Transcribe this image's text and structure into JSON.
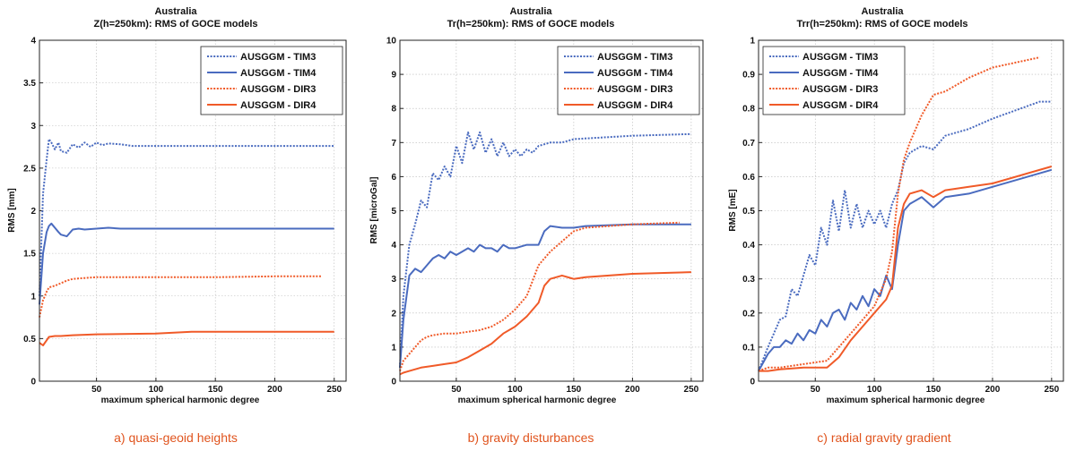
{
  "chart_data": [
    {
      "type": "line",
      "title": "Australia",
      "subtitle": "Z(h=250km): RMS of GOCE models",
      "xlabel": "maximum spherical harmonic degree",
      "ylabel": "RMS [mm]",
      "xlim": [
        2,
        260
      ],
      "ylim": [
        0,
        4
      ],
      "xticks": [
        50,
        100,
        150,
        200,
        250
      ],
      "yticks": [
        0,
        0.5,
        1,
        1.5,
        2,
        2.5,
        3,
        3.5,
        4
      ],
      "xtick_labels": [
        "50",
        "100",
        "150",
        "200",
        "250"
      ],
      "ytick_labels": [
        "0",
        "0.5",
        "1",
        "1.5",
        "2",
        "2.5",
        "3",
        "3.5",
        "4"
      ],
      "grid": true,
      "legend": "top-right",
      "caption": "a) quasi-geoid heights",
      "series": [
        {
          "name": "AUSGGM - TIM3",
          "color": "#4a6bbf",
          "dash": "dotted",
          "x": [
            2,
            5,
            8,
            10,
            12,
            15,
            18,
            20,
            25,
            30,
            35,
            40,
            45,
            50,
            55,
            60,
            70,
            80,
            100,
            150,
            200,
            250
          ],
          "y": [
            1.0,
            2.2,
            2.6,
            2.84,
            2.8,
            2.72,
            2.8,
            2.7,
            2.68,
            2.78,
            2.74,
            2.8,
            2.75,
            2.8,
            2.77,
            2.79,
            2.78,
            2.76,
            2.76,
            2.76,
            2.76,
            2.76
          ]
        },
        {
          "name": "AUSGGM - TIM4",
          "color": "#4a6bbf",
          "dash": "solid",
          "x": [
            2,
            5,
            8,
            10,
            12,
            15,
            18,
            20,
            25,
            30,
            35,
            40,
            50,
            60,
            70,
            80,
            100,
            150,
            200,
            250
          ],
          "y": [
            0.9,
            1.5,
            1.75,
            1.82,
            1.85,
            1.8,
            1.75,
            1.72,
            1.7,
            1.78,
            1.79,
            1.78,
            1.79,
            1.8,
            1.79,
            1.79,
            1.79,
            1.79,
            1.79,
            1.79
          ]
        },
        {
          "name": "AUSGGM - DIR3",
          "color": "#f05a28",
          "dash": "dotted",
          "x": [
            2,
            5,
            8,
            10,
            15,
            20,
            25,
            30,
            40,
            50,
            100,
            150,
            200,
            240
          ],
          "y": [
            0.75,
            0.95,
            1.05,
            1.1,
            1.12,
            1.15,
            1.18,
            1.2,
            1.21,
            1.22,
            1.22,
            1.22,
            1.23,
            1.23
          ]
        },
        {
          "name": "AUSGGM - DIR4",
          "color": "#f05a28",
          "dash": "solid",
          "x": [
            2,
            5,
            8,
            10,
            15,
            20,
            30,
            50,
            100,
            130,
            150,
            200,
            250
          ],
          "y": [
            0.45,
            0.42,
            0.48,
            0.52,
            0.53,
            0.53,
            0.54,
            0.55,
            0.56,
            0.58,
            0.58,
            0.58,
            0.58
          ]
        }
      ]
    },
    {
      "type": "line",
      "title": "Australia",
      "subtitle": "Tr(h=250km): RMS of GOCE models",
      "xlabel": "maximum spherical harmonic degree",
      "ylabel": "RMS [microGal]",
      "xlim": [
        2,
        260
      ],
      "ylim": [
        0,
        10
      ],
      "xticks": [
        50,
        100,
        150,
        200,
        250
      ],
      "yticks": [
        0,
        1,
        2,
        3,
        4,
        5,
        6,
        7,
        8,
        9,
        10
      ],
      "xtick_labels": [
        "50",
        "100",
        "150",
        "200",
        "250"
      ],
      "ytick_labels": [
        "0",
        "1",
        "2",
        "3",
        "4",
        "5",
        "6",
        "7",
        "8",
        "9",
        "10"
      ],
      "grid": true,
      "legend": "top-right",
      "caption": "b) gravity disturbances",
      "series": [
        {
          "name": "AUSGGM - TIM3",
          "color": "#4a6bbf",
          "dash": "dotted",
          "x": [
            2,
            5,
            10,
            15,
            20,
            25,
            30,
            35,
            40,
            45,
            50,
            55,
            60,
            65,
            70,
            75,
            80,
            85,
            90,
            95,
            100,
            105,
            110,
            115,
            120,
            130,
            140,
            150,
            200,
            250
          ],
          "y": [
            0.4,
            2.5,
            4.0,
            4.6,
            5.3,
            5.1,
            6.1,
            5.9,
            6.3,
            6.0,
            6.9,
            6.4,
            7.3,
            6.8,
            7.3,
            6.7,
            7.1,
            6.6,
            7.0,
            6.6,
            6.8,
            6.6,
            6.8,
            6.7,
            6.9,
            7.0,
            7.0,
            7.1,
            7.2,
            7.25
          ]
        },
        {
          "name": "AUSGGM - TIM4",
          "color": "#4a6bbf",
          "dash": "solid",
          "x": [
            2,
            5,
            10,
            15,
            20,
            25,
            30,
            35,
            40,
            45,
            50,
            55,
            60,
            65,
            70,
            75,
            80,
            85,
            90,
            95,
            100,
            110,
            120,
            125,
            130,
            140,
            150,
            160,
            200,
            250
          ],
          "y": [
            0.4,
            1.8,
            3.1,
            3.3,
            3.2,
            3.4,
            3.6,
            3.7,
            3.6,
            3.8,
            3.7,
            3.8,
            3.9,
            3.8,
            4.0,
            3.9,
            3.9,
            3.8,
            4.0,
            3.9,
            3.9,
            4.0,
            4.0,
            4.4,
            4.55,
            4.5,
            4.5,
            4.55,
            4.6,
            4.6
          ]
        },
        {
          "name": "AUSGGM - DIR3",
          "color": "#f05a28",
          "dash": "dotted",
          "x": [
            2,
            5,
            10,
            15,
            20,
            25,
            30,
            40,
            50,
            60,
            70,
            80,
            90,
            100,
            110,
            120,
            125,
            130,
            140,
            150,
            160,
            200,
            240
          ],
          "y": [
            0.3,
            0.6,
            0.8,
            1.0,
            1.2,
            1.3,
            1.35,
            1.4,
            1.4,
            1.45,
            1.5,
            1.6,
            1.8,
            2.1,
            2.5,
            3.4,
            3.6,
            3.8,
            4.1,
            4.4,
            4.5,
            4.6,
            4.65
          ]
        },
        {
          "name": "AUSGGM - DIR4",
          "color": "#f05a28",
          "dash": "solid",
          "x": [
            2,
            5,
            10,
            20,
            30,
            40,
            50,
            60,
            70,
            80,
            90,
            100,
            110,
            120,
            125,
            130,
            140,
            150,
            160,
            200,
            250
          ],
          "y": [
            0.2,
            0.25,
            0.3,
            0.4,
            0.45,
            0.5,
            0.55,
            0.7,
            0.9,
            1.1,
            1.4,
            1.6,
            1.9,
            2.3,
            2.8,
            3.0,
            3.1,
            3.0,
            3.05,
            3.15,
            3.2
          ]
        }
      ]
    },
    {
      "type": "line",
      "title": "Australia",
      "subtitle": "Trr(h=250km): RMS of GOCE models",
      "xlabel": "maximum spherical harmonic degree",
      "ylabel": "RMS [mE]",
      "xlim": [
        2,
        260
      ],
      "ylim": [
        0,
        1
      ],
      "xticks": [
        50,
        100,
        150,
        200,
        250
      ],
      "yticks": [
        0,
        0.1,
        0.2,
        0.3,
        0.4,
        0.5,
        0.6,
        0.7,
        0.8,
        0.9,
        1
      ],
      "xtick_labels": [
        "50",
        "100",
        "150",
        "200",
        "250"
      ],
      "ytick_labels": [
        "0",
        "0.1",
        "0.2",
        "0.3",
        "0.4",
        "0.5",
        "0.6",
        "0.7",
        "0.8",
        "0.9",
        "1"
      ],
      "grid": true,
      "legend": "top-left",
      "caption": "c) radial gravity gradient",
      "series": [
        {
          "name": "AUSGGM - TIM3",
          "color": "#4a6bbf",
          "dash": "dotted",
          "x": [
            2,
            10,
            20,
            25,
            30,
            35,
            40,
            45,
            50,
            55,
            60,
            65,
            70,
            75,
            80,
            85,
            90,
            95,
            100,
            105,
            110,
            115,
            120,
            125,
            130,
            140,
            150,
            160,
            180,
            200,
            240,
            250
          ],
          "y": [
            0.03,
            0.1,
            0.18,
            0.19,
            0.27,
            0.25,
            0.31,
            0.37,
            0.34,
            0.45,
            0.4,
            0.53,
            0.44,
            0.56,
            0.45,
            0.52,
            0.45,
            0.5,
            0.46,
            0.5,
            0.45,
            0.52,
            0.56,
            0.64,
            0.67,
            0.69,
            0.68,
            0.72,
            0.74,
            0.77,
            0.82,
            0.82
          ]
        },
        {
          "name": "AUSGGM - TIM4",
          "color": "#4a6bbf",
          "dash": "solid",
          "x": [
            2,
            10,
            15,
            20,
            25,
            30,
            35,
            40,
            45,
            50,
            55,
            60,
            65,
            70,
            75,
            80,
            85,
            90,
            95,
            100,
            105,
            110,
            115,
            120,
            125,
            130,
            140,
            150,
            160,
            180,
            200,
            250
          ],
          "y": [
            0.03,
            0.08,
            0.1,
            0.1,
            0.12,
            0.11,
            0.14,
            0.12,
            0.15,
            0.14,
            0.18,
            0.16,
            0.2,
            0.21,
            0.18,
            0.23,
            0.21,
            0.25,
            0.22,
            0.27,
            0.25,
            0.31,
            0.27,
            0.4,
            0.5,
            0.52,
            0.54,
            0.51,
            0.54,
            0.55,
            0.57,
            0.62
          ]
        },
        {
          "name": "AUSGGM - DIR3",
          "color": "#f05a28",
          "dash": "dotted",
          "x": [
            2,
            10,
            20,
            40,
            60,
            70,
            80,
            90,
            100,
            110,
            115,
            120,
            125,
            130,
            140,
            150,
            160,
            180,
            200,
            240
          ],
          "y": [
            0.03,
            0.04,
            0.04,
            0.05,
            0.06,
            0.1,
            0.14,
            0.18,
            0.22,
            0.3,
            0.38,
            0.55,
            0.65,
            0.7,
            0.78,
            0.84,
            0.85,
            0.89,
            0.92,
            0.95
          ]
        },
        {
          "name": "AUSGGM - DIR4",
          "color": "#f05a28",
          "dash": "solid",
          "x": [
            2,
            10,
            20,
            40,
            60,
            70,
            80,
            90,
            100,
            110,
            115,
            120,
            125,
            130,
            140,
            150,
            160,
            180,
            200,
            250
          ],
          "y": [
            0.03,
            0.03,
            0.035,
            0.04,
            0.04,
            0.07,
            0.12,
            0.16,
            0.2,
            0.24,
            0.28,
            0.45,
            0.52,
            0.55,
            0.56,
            0.54,
            0.56,
            0.57,
            0.58,
            0.63
          ]
        }
      ]
    }
  ]
}
